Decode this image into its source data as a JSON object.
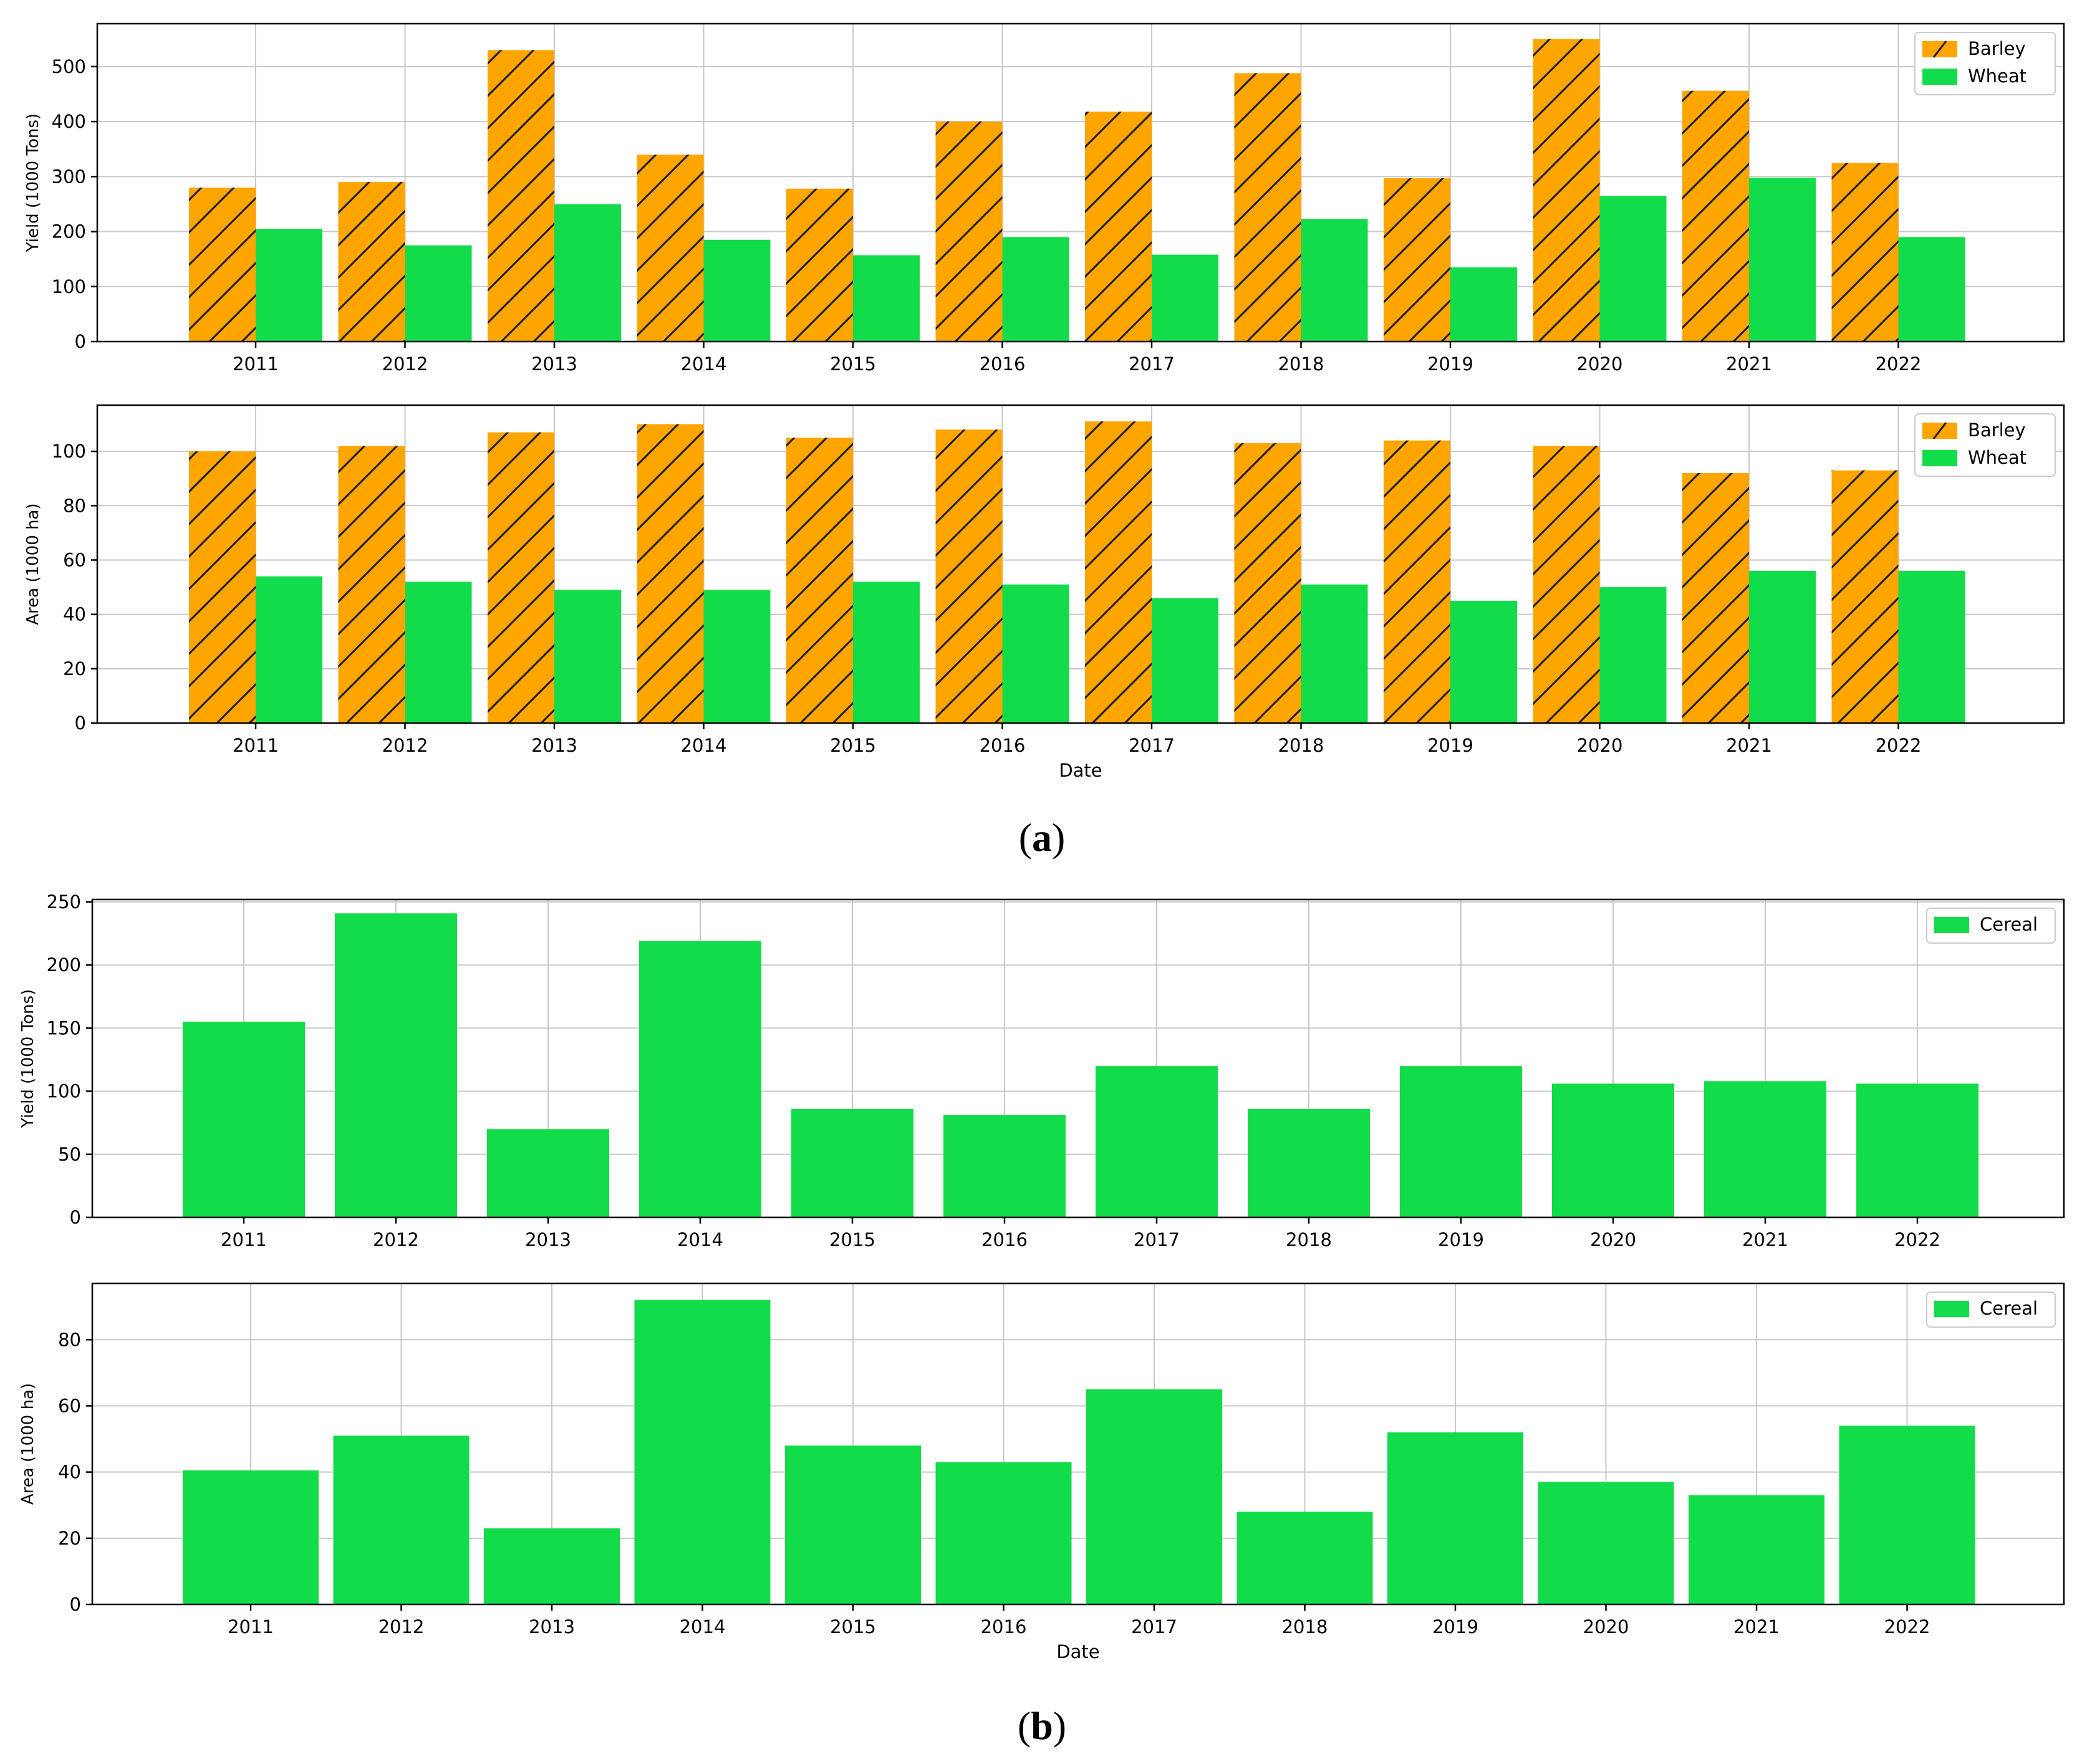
{
  "figure": {
    "panel_a_label": "(a)",
    "panel_b_label": "(b)",
    "panel_a_label_letter": "a",
    "panel_b_label_letter": "b"
  },
  "colors": {
    "barley": "#ffa500",
    "wheat": "#12dc4a",
    "cereal": "#12dc4a",
    "hatch": "#1a1a1a",
    "grid": "#c8c8c8",
    "axis": "#000000"
  },
  "chart_data": [
    {
      "type": "bar",
      "panel": "a",
      "categories": [
        "2011",
        "2012",
        "2013",
        "2014",
        "2015",
        "2016",
        "2017",
        "2018",
        "2019",
        "2020",
        "2021",
        "2022"
      ],
      "series": [
        {
          "name": "Barley",
          "values": [
            280,
            290,
            530,
            340,
            278,
            400,
            418,
            488,
            297,
            550,
            456,
            325
          ]
        },
        {
          "name": "Wheat",
          "values": [
            205,
            175,
            250,
            185,
            157,
            190,
            158,
            223,
            135,
            265,
            298,
            190
          ]
        }
      ],
      "xlabel": "",
      "ylabel": "Yield (1000 Tons)",
      "ylim": [
        0,
        578
      ],
      "yticks": [
        0,
        100,
        200,
        300,
        400,
        500
      ],
      "grid": true,
      "legend": "top-right"
    },
    {
      "type": "bar",
      "panel": "a",
      "categories": [
        "2011",
        "2012",
        "2013",
        "2014",
        "2015",
        "2016",
        "2017",
        "2018",
        "2019",
        "2020",
        "2021",
        "2022"
      ],
      "series": [
        {
          "name": "Barley",
          "values": [
            100,
            102,
            107,
            110,
            105,
            108,
            111,
            103,
            104,
            102,
            92,
            93
          ]
        },
        {
          "name": "Wheat",
          "values": [
            54,
            52,
            49,
            49,
            52,
            51,
            46,
            51,
            45,
            50,
            56,
            56
          ]
        }
      ],
      "xlabel": "Date",
      "ylabel": "Area (1000 ha)",
      "ylim": [
        0,
        117
      ],
      "yticks": [
        0,
        20,
        40,
        60,
        80,
        100
      ],
      "grid": true,
      "legend": "top-right"
    },
    {
      "type": "bar",
      "panel": "b",
      "categories": [
        "2011",
        "2012",
        "2013",
        "2014",
        "2015",
        "2016",
        "2017",
        "2018",
        "2019",
        "2020",
        "2021",
        "2022"
      ],
      "series": [
        {
          "name": "Cereal",
          "values": [
            155,
            241,
            70,
            219,
            86,
            81,
            120,
            86,
            120,
            106,
            108,
            106
          ]
        }
      ],
      "xlabel": "",
      "ylabel": "Yield (1000 Tons)",
      "ylim": [
        0,
        252
      ],
      "yticks": [
        0,
        50,
        100,
        150,
        200,
        250
      ],
      "grid": true,
      "legend": "top-right"
    },
    {
      "type": "bar",
      "panel": "b",
      "categories": [
        "2011",
        "2012",
        "2013",
        "2014",
        "2015",
        "2016",
        "2017",
        "2018",
        "2019",
        "2020",
        "2021",
        "2022"
      ],
      "series": [
        {
          "name": "Cereal",
          "values": [
            40.5,
            51,
            23,
            92,
            48,
            43,
            65,
            28,
            52,
            37,
            33,
            54
          ]
        }
      ],
      "xlabel": "Date",
      "ylabel": "Area (1000 ha)",
      "ylim": [
        0,
        97
      ],
      "yticks": [
        0,
        20,
        40,
        60,
        80
      ],
      "grid": true,
      "legend": "top-right"
    }
  ]
}
